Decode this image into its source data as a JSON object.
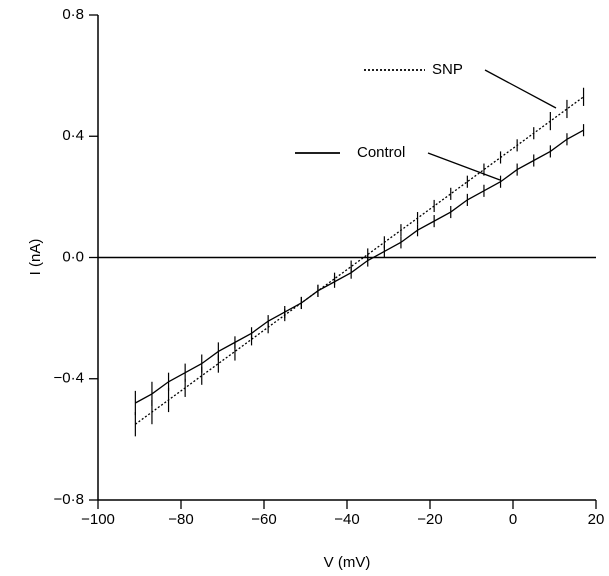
{
  "chart_data": {
    "type": "line",
    "xlabel": "V (mV)",
    "ylabel": "I (nA)",
    "x": [
      -91,
      -87,
      -83,
      -79,
      -75,
      -71,
      -67,
      -63,
      -59,
      -55,
      -51,
      -47,
      -43,
      -39,
      -35,
      -31,
      -27,
      -23,
      -19,
      -15,
      -11,
      -7,
      -3,
      1,
      5,
      9,
      13,
      17
    ],
    "series": [
      {
        "name": "SNP",
        "color": "#000000",
        "style": "dotted",
        "values": [
          -0.55,
          -0.51,
          -0.47,
          -0.43,
          -0.39,
          -0.35,
          -0.31,
          -0.27,
          -0.23,
          -0.19,
          -0.15,
          -0.11,
          -0.07,
          -0.03,
          0.01,
          0.05,
          0.09,
          0.13,
          0.17,
          0.21,
          0.25,
          0.29,
          0.33,
          0.37,
          0.41,
          0.45,
          0.49,
          0.53
        ],
        "errors": [
          0.04,
          0.04,
          0.04,
          0.03,
          0.03,
          0.03,
          0.03,
          0.02,
          0.02,
          0.02,
          0.02,
          0.02,
          0.02,
          0.02,
          0.02,
          0.02,
          0.02,
          0.02,
          0.02,
          0.02,
          0.02,
          0.02,
          0.02,
          0.02,
          0.02,
          0.03,
          0.03,
          0.03
        ]
      },
      {
        "name": "Control",
        "color": "#000000",
        "style": "solid",
        "values": [
          -0.48,
          -0.45,
          -0.41,
          -0.38,
          -0.35,
          -0.31,
          -0.28,
          -0.25,
          -0.21,
          -0.18,
          -0.15,
          -0.11,
          -0.08,
          -0.05,
          -0.01,
          0.02,
          0.05,
          0.09,
          0.12,
          0.15,
          0.19,
          0.22,
          0.25,
          0.29,
          0.32,
          0.35,
          0.39,
          0.42
        ],
        "errors": [
          0.04,
          0.04,
          0.03,
          0.03,
          0.03,
          0.03,
          0.02,
          0.02,
          0.02,
          0.02,
          0.02,
          0.02,
          0.02,
          0.02,
          0.02,
          0.02,
          0.02,
          0.02,
          0.02,
          0.02,
          0.02,
          0.02,
          0.02,
          0.02,
          0.02,
          0.02,
          0.02,
          0.02
        ]
      }
    ],
    "xlim": [
      -100,
      20
    ],
    "xticks": [
      {
        "value": -100,
        "label": "−100"
      },
      {
        "value": -80,
        "label": "−80"
      },
      {
        "value": -60,
        "label": "−60"
      },
      {
        "value": -40,
        "label": "−40"
      },
      {
        "value": -20,
        "label": "−20"
      },
      0,
      20
    ],
    "ylim": [
      -0.8,
      0.8
    ],
    "yticks": [
      {
        "value": -0.8,
        "label": "−0·8"
      },
      {
        "value": -0.4,
        "label": "−0·4"
      },
      {
        "value": 0,
        "label": "0·0"
      },
      {
        "value": 0.4,
        "label": "0·4"
      },
      {
        "value": 0.8,
        "label": "0·8"
      }
    ],
    "zero_line": true
  }
}
